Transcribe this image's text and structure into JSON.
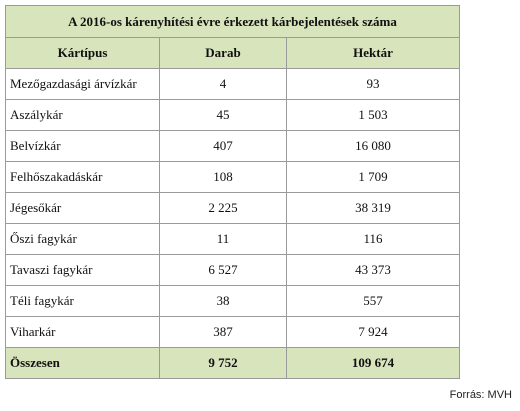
{
  "table": {
    "title": "A 2016-os kárenyhítési évre érkezett kárbejelentések száma",
    "header": [
      "Kártípus",
      "Darab",
      "Hektár"
    ],
    "rows": [
      [
        "Mezőgazdasági árvízkár",
        "4",
        "93"
      ],
      [
        "Aszálykár",
        "45",
        "1 503"
      ],
      [
        "Belvízkár",
        "407",
        "16 080"
      ],
      [
        "Felhőszakadáskár",
        "108",
        "1 709"
      ],
      [
        "Jégesőkár",
        "2 225",
        "38 319"
      ],
      [
        "Őszi fagykár",
        "11",
        "116"
      ],
      [
        "Tavaszi fagykár",
        "6 527",
        "43 373"
      ],
      [
        "Téli fagykár",
        "38",
        "557"
      ],
      [
        "Viharkár",
        "387",
        "7 924"
      ]
    ],
    "total": [
      "Összesen",
      "9 752",
      "109 674"
    ]
  },
  "source": "Forrás: MVH"
}
